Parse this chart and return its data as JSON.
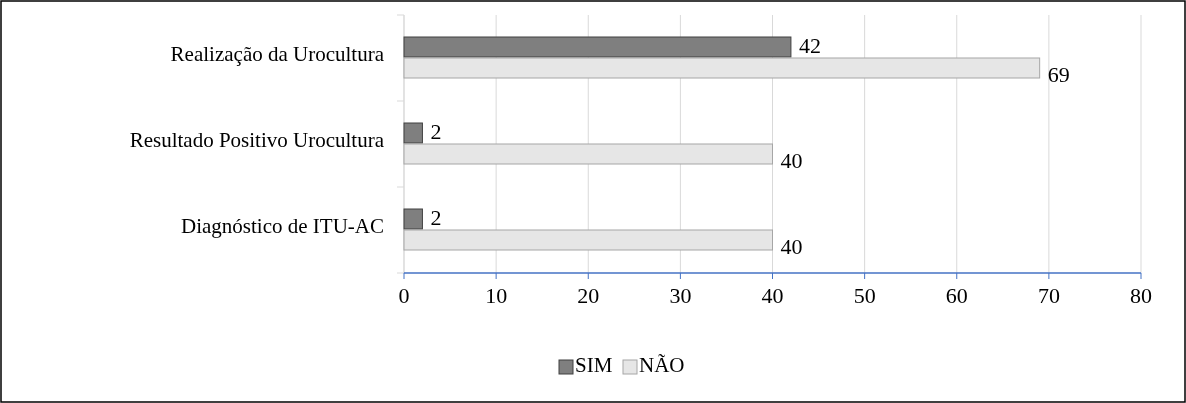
{
  "chart_data": {
    "type": "bar",
    "orientation": "horizontal",
    "categories": [
      "Realização da Urocultura",
      "Resultado Positivo Urocultura",
      "Diagnóstico de ITU-AC"
    ],
    "series": [
      {
        "name": "SIM",
        "color": "#7f7f7f",
        "values": [
          42,
          2,
          2
        ]
      },
      {
        "name": "NÃO",
        "color": "#e6e6e6",
        "values": [
          69,
          40,
          40
        ]
      }
    ],
    "xlim": [
      0,
      80
    ],
    "xticks": [
      0,
      10,
      20,
      30,
      40,
      50,
      60,
      70,
      80
    ],
    "grid": "x",
    "legend": "bottom",
    "data_labels": true
  }
}
